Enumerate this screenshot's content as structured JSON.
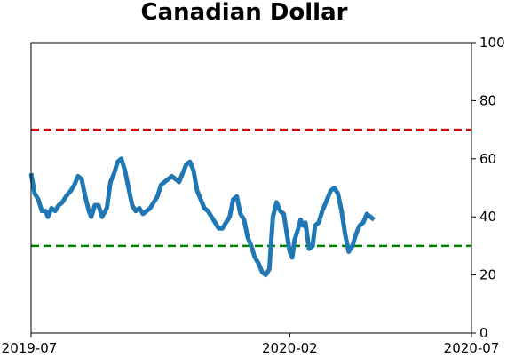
{
  "chart_data": {
    "type": "line",
    "title": "Canadian Dollar",
    "xlabel": "",
    "ylabel": "",
    "ylim": [
      0,
      100
    ],
    "y_axis_side": "right",
    "y_ticks": [
      "0",
      "20",
      "40",
      "60",
      "80",
      "100"
    ],
    "x_ticks": [
      {
        "label": "2019-07",
        "date": "2019-07-01"
      },
      {
        "label": "2020-02",
        "date": "2020-02-01"
      },
      {
        "label": "2020-07",
        "date": "2020-07-01"
      }
    ],
    "xlim": [
      "2019-07-01",
      "2020-07-01"
    ],
    "grid": false,
    "reference_lines": [
      {
        "y": 70,
        "color": "#dd0000",
        "style": "dashed"
      },
      {
        "y": 30,
        "color": "#008000",
        "style": "dashed"
      }
    ],
    "series": [
      {
        "color": "#1f77b4",
        "points": [
          [
            "2019-07-01",
            55
          ],
          [
            "2019-07-04",
            48
          ],
          [
            "2019-07-07",
            46
          ],
          [
            "2019-07-10",
            42
          ],
          [
            "2019-07-13",
            42
          ],
          [
            "2019-07-15",
            40
          ],
          [
            "2019-07-18",
            43
          ],
          [
            "2019-07-21",
            42
          ],
          [
            "2019-07-24",
            44
          ],
          [
            "2019-07-27",
            45
          ],
          [
            "2019-07-30",
            47
          ],
          [
            "2019-08-03",
            49
          ],
          [
            "2019-08-06",
            51
          ],
          [
            "2019-08-09",
            54
          ],
          [
            "2019-08-12",
            53
          ],
          [
            "2019-08-15",
            47
          ],
          [
            "2019-08-18",
            42
          ],
          [
            "2019-08-20",
            40
          ],
          [
            "2019-08-23",
            44
          ],
          [
            "2019-08-26",
            44
          ],
          [
            "2019-08-29",
            40
          ],
          [
            "2019-09-02",
            43
          ],
          [
            "2019-09-05",
            52
          ],
          [
            "2019-09-08",
            55
          ],
          [
            "2019-09-11",
            59
          ],
          [
            "2019-09-14",
            60
          ],
          [
            "2019-09-17",
            56
          ],
          [
            "2019-09-20",
            50
          ],
          [
            "2019-09-23",
            44
          ],
          [
            "2019-09-26",
            42
          ],
          [
            "2019-09-29",
            43
          ],
          [
            "2019-10-02",
            41
          ],
          [
            "2019-10-05",
            42
          ],
          [
            "2019-10-08",
            43
          ],
          [
            "2019-10-11",
            45
          ],
          [
            "2019-10-14",
            47
          ],
          [
            "2019-10-17",
            51
          ],
          [
            "2019-10-20",
            52
          ],
          [
            "2019-10-23",
            53
          ],
          [
            "2019-10-26",
            54
          ],
          [
            "2019-10-29",
            53
          ],
          [
            "2019-11-01",
            52
          ],
          [
            "2019-11-04",
            55
          ],
          [
            "2019-11-07",
            58
          ],
          [
            "2019-11-10",
            59
          ],
          [
            "2019-11-13",
            56
          ],
          [
            "2019-11-16",
            49
          ],
          [
            "2019-11-19",
            46
          ],
          [
            "2019-11-22",
            43
          ],
          [
            "2019-11-25",
            42
          ],
          [
            "2019-11-28",
            40
          ],
          [
            "2019-12-01",
            38
          ],
          [
            "2019-12-04",
            36
          ],
          [
            "2019-12-07",
            36
          ],
          [
            "2019-12-10",
            38
          ],
          [
            "2019-12-13",
            40
          ],
          [
            "2019-12-16",
            46
          ],
          [
            "2019-12-19",
            47
          ],
          [
            "2019-12-22",
            41
          ],
          [
            "2019-12-25",
            39
          ],
          [
            "2019-12-28",
            33
          ],
          [
            "2019-12-31",
            30
          ],
          [
            "2020-01-03",
            26
          ],
          [
            "2020-01-06",
            24
          ],
          [
            "2020-01-09",
            21
          ],
          [
            "2020-01-12",
            20
          ],
          [
            "2020-01-15",
            22
          ],
          [
            "2020-01-18",
            40
          ],
          [
            "2020-01-21",
            45
          ],
          [
            "2020-01-24",
            42
          ],
          [
            "2020-01-27",
            41
          ],
          [
            "2020-01-30",
            33
          ],
          [
            "2020-02-01",
            28
          ],
          [
            "2020-02-03",
            26
          ],
          [
            "2020-02-05",
            32
          ],
          [
            "2020-02-08",
            36
          ],
          [
            "2020-02-10",
            39
          ],
          [
            "2020-02-12",
            37
          ],
          [
            "2020-02-14",
            38
          ],
          [
            "2020-02-17",
            29
          ],
          [
            "2020-02-20",
            30
          ],
          [
            "2020-02-22",
            37
          ],
          [
            "2020-02-25",
            38
          ],
          [
            "2020-02-28",
            42
          ],
          [
            "2020-03-03",
            46
          ],
          [
            "2020-03-06",
            49
          ],
          [
            "2020-03-09",
            50
          ],
          [
            "2020-03-12",
            48
          ],
          [
            "2020-03-15",
            42
          ],
          [
            "2020-03-18",
            34
          ],
          [
            "2020-03-21",
            28
          ],
          [
            "2020-03-24",
            30
          ],
          [
            "2020-03-27",
            34
          ],
          [
            "2020-03-30",
            37
          ],
          [
            "2020-04-02",
            38
          ],
          [
            "2020-04-05",
            41
          ],
          [
            "2020-04-08",
            40
          ],
          [
            "2020-04-11",
            39
          ]
        ]
      }
    ]
  }
}
